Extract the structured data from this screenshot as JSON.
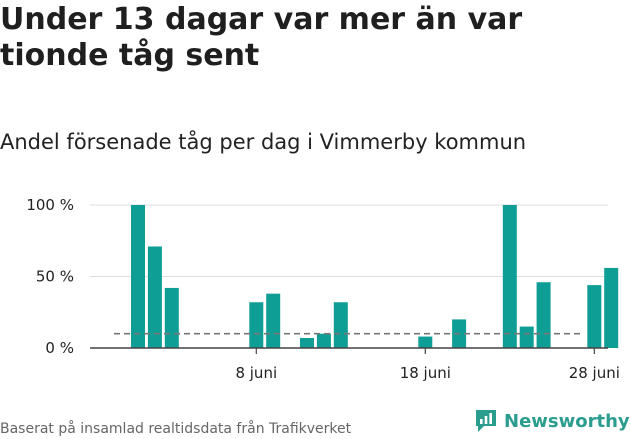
{
  "headline": "Under 13 dagar var mer än var tionde tåg sent",
  "subtitle": "Andel försenade tåg per dag i Vimmerby kommun",
  "footer": "Baserat på insamlad realtidsdata från Trafikverket",
  "brand": {
    "name": "Newsworthy",
    "icon": "newsworthy-logo-icon",
    "color": "#2a9d8f"
  },
  "chart_data": {
    "type": "bar",
    "bar_color": "#0f9e96",
    "reference_line": {
      "value": 10,
      "style": "dashed",
      "color": "#777777"
    },
    "x": [
      1,
      2,
      3,
      4,
      5,
      6,
      7,
      8,
      9,
      10,
      11,
      12,
      13,
      14,
      15,
      16,
      17,
      18,
      19,
      20,
      21,
      22,
      23,
      24,
      25,
      26,
      27,
      28,
      29
    ],
    "values": [
      100,
      71,
      42,
      0,
      0,
      0,
      0,
      32,
      38,
      0,
      7,
      10,
      32,
      0,
      0,
      0,
      0,
      8,
      0,
      20,
      0,
      0,
      100,
      15,
      46,
      0,
      0,
      44,
      56
    ],
    "x_ticks": [
      {
        "x": 8,
        "label": "8 juni"
      },
      {
        "x": 18,
        "label": "18 juni"
      },
      {
        "x": 28,
        "label": "28 juni"
      }
    ],
    "y_ticks": [
      {
        "value": 0,
        "label": "0 %"
      },
      {
        "value": 50,
        "label": "50 %"
      },
      {
        "value": 100,
        "label": "100 %"
      }
    ],
    "ylim": [
      0,
      100
    ],
    "grid": true
  }
}
